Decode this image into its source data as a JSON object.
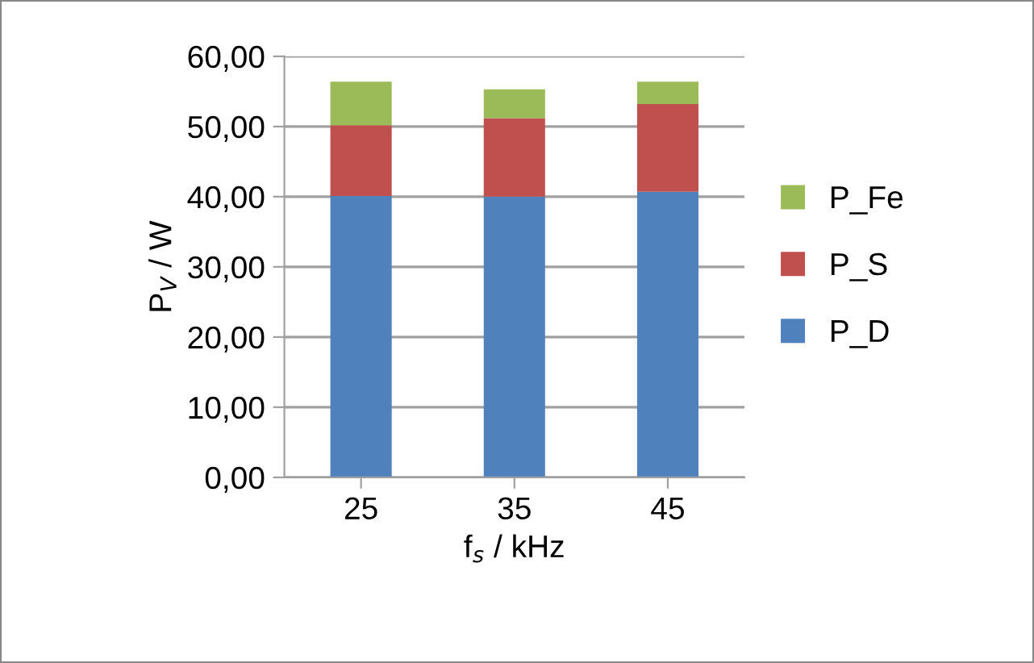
{
  "chart_data": {
    "type": "bar",
    "stacked": true,
    "categories": [
      "25",
      "35",
      "45"
    ],
    "series": [
      {
        "name": "P_D",
        "color": "#4f81bd",
        "values": [
          40.1,
          40.0,
          40.7
        ]
      },
      {
        "name": "P_S",
        "color": "#c0504d",
        "values": [
          10.1,
          11.2,
          12.5
        ]
      },
      {
        "name": "P_Fe",
        "color": "#9bbb59",
        "values": [
          6.2,
          4.1,
          3.2
        ]
      }
    ],
    "xlabel": "f$_{s}$ / kHz",
    "ylabel": "P$_{V}$ / W",
    "ylim": [
      0,
      60
    ],
    "yticks": [
      {
        "value": 0,
        "label": "0,00"
      },
      {
        "value": 10,
        "label": "10,00"
      },
      {
        "value": 20,
        "label": "20,00"
      },
      {
        "value": 30,
        "label": "30,00"
      },
      {
        "value": 40,
        "label": "40,00"
      },
      {
        "value": 50,
        "label": "50,00"
      },
      {
        "value": 60,
        "label": "60,00"
      }
    ],
    "grid": "y",
    "legend": "right"
  }
}
